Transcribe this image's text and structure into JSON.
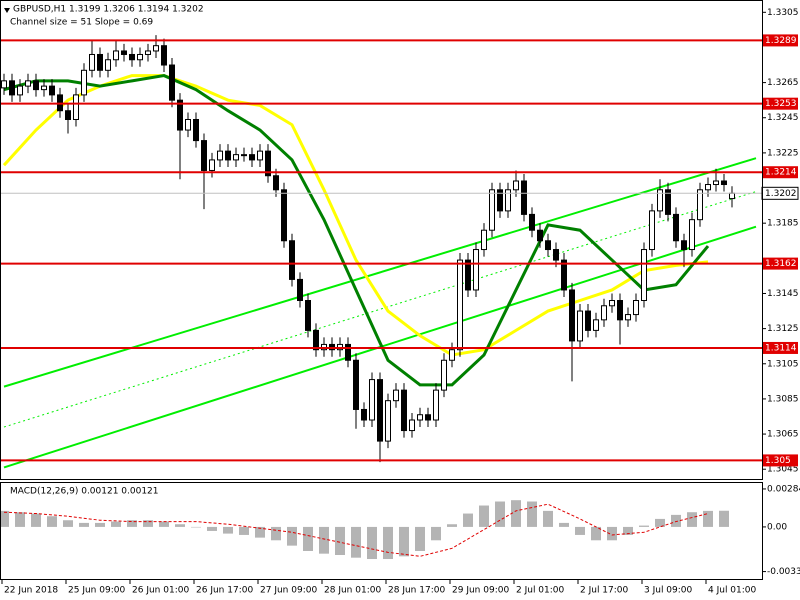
{
  "chart_data": {
    "type": "candlestick",
    "title": "GBPUSD,H1  1.3199 1.3206 1.3194 1.3202",
    "subtitle": "Channel size = 51 Slope = 0.69",
    "ylim": [
      1.304,
      1.3312
    ],
    "yticks": [
      1.3305,
      1.3265,
      1.3245,
      1.3225,
      1.3185,
      1.3145,
      1.3125,
      1.3105,
      1.3085,
      1.3065,
      1.3045
    ],
    "levels": [
      1.3289,
      1.3253,
      1.3214,
      1.3162,
      1.3114,
      1.305
    ],
    "level_color": "#e00000",
    "current_price": 1.3202,
    "x_labels": [
      "22 Jun 2018",
      "25 Jun 09:00",
      "26 Jun 01:00",
      "26 Jun 17:00",
      "27 Jun 09:00",
      "28 Jun 01:00",
      "28 Jun 17:00",
      "29 Jun 09:00",
      "2 Jul 01:00",
      "2 Jul 17:00",
      "3 Jul 09:00",
      "4 Jul 01:00"
    ],
    "candles": [
      [
        1.3262,
        1.327,
        1.3258,
        1.3266
      ],
      [
        1.3266,
        1.327,
        1.3254,
        1.3258
      ],
      [
        1.3258,
        1.3267,
        1.3254,
        1.3263
      ],
      [
        1.3263,
        1.327,
        1.3259,
        1.3266
      ],
      [
        1.3266,
        1.327,
        1.3257,
        1.3261
      ],
      [
        1.3261,
        1.3267,
        1.3257,
        1.3263
      ],
      [
        1.3263,
        1.3267,
        1.3254,
        1.3258
      ],
      [
        1.3258,
        1.3262,
        1.3245,
        1.3249
      ],
      [
        1.3249,
        1.3253,
        1.3236,
        1.3244
      ],
      [
        1.3244,
        1.3262,
        1.324,
        1.3258
      ],
      [
        1.3258,
        1.3276,
        1.3254,
        1.3272
      ],
      [
        1.3272,
        1.3289,
        1.3268,
        1.3281
      ],
      [
        1.3281,
        1.3285,
        1.3268,
        1.3272
      ],
      [
        1.3272,
        1.3282,
        1.3268,
        1.3278
      ],
      [
        1.3278,
        1.3289,
        1.3274,
        1.3283
      ],
      [
        1.3283,
        1.3287,
        1.3277,
        1.3281
      ],
      [
        1.3281,
        1.3285,
        1.3274,
        1.3278
      ],
      [
        1.3278,
        1.3285,
        1.3274,
        1.3281
      ],
      [
        1.3281,
        1.3287,
        1.3277,
        1.3283
      ],
      [
        1.3283,
        1.3292,
        1.3279,
        1.3286
      ],
      [
        1.3286,
        1.329,
        1.3271,
        1.3275
      ],
      [
        1.3275,
        1.3279,
        1.3251,
        1.3255
      ],
      [
        1.3255,
        1.3259,
        1.321,
        1.3238
      ],
      [
        1.3238,
        1.3248,
        1.3234,
        1.3244
      ],
      [
        1.3244,
        1.3248,
        1.3228,
        1.3232
      ],
      [
        1.3232,
        1.3236,
        1.3193,
        1.3215
      ],
      [
        1.3215,
        1.3225,
        1.3211,
        1.3221
      ],
      [
        1.3221,
        1.323,
        1.3217,
        1.3226
      ],
      [
        1.3226,
        1.323,
        1.3217,
        1.3221
      ],
      [
        1.3221,
        1.3228,
        1.3217,
        1.3224
      ],
      [
        1.3224,
        1.3228,
        1.322,
        1.3224
      ],
      [
        1.3224,
        1.3228,
        1.3217,
        1.3221
      ],
      [
        1.3221,
        1.323,
        1.3217,
        1.3226
      ],
      [
        1.3226,
        1.323,
        1.3208,
        1.3212
      ],
      [
        1.3212,
        1.3216,
        1.32,
        1.3204
      ],
      [
        1.3204,
        1.3208,
        1.3171,
        1.3175
      ],
      [
        1.3175,
        1.3179,
        1.3149,
        1.3153
      ],
      [
        1.3153,
        1.3157,
        1.3137,
        1.3141
      ],
      [
        1.3141,
        1.3145,
        1.312,
        1.3124
      ],
      [
        1.3124,
        1.3128,
        1.3109,
        1.3113
      ],
      [
        1.3113,
        1.312,
        1.3109,
        1.3116
      ],
      [
        1.3116,
        1.312,
        1.3109,
        1.3113
      ],
      [
        1.3113,
        1.312,
        1.3109,
        1.3116
      ],
      [
        1.3116,
        1.312,
        1.3103,
        1.3107
      ],
      [
        1.3107,
        1.3111,
        1.3068,
        1.3079
      ],
      [
        1.3079,
        1.3083,
        1.3069,
        1.3073
      ],
      [
        1.3073,
        1.31,
        1.3069,
        1.3096
      ],
      [
        1.3096,
        1.31,
        1.3049,
        1.3061
      ],
      [
        1.3061,
        1.3088,
        1.3057,
        1.3084
      ],
      [
        1.3084,
        1.3094,
        1.308,
        1.309
      ],
      [
        1.309,
        1.3094,
        1.3063,
        1.3067
      ],
      [
        1.3067,
        1.3077,
        1.3063,
        1.3073
      ],
      [
        1.3073,
        1.308,
        1.3069,
        1.3076
      ],
      [
        1.3076,
        1.308,
        1.3069,
        1.3073
      ],
      [
        1.3073,
        1.3094,
        1.3069,
        1.309
      ],
      [
        1.309,
        1.3111,
        1.3086,
        1.3107
      ],
      [
        1.3107,
        1.3117,
        1.3103,
        1.3113
      ],
      [
        1.3113,
        1.3168,
        1.3109,
        1.3164
      ],
      [
        1.3164,
        1.3168,
        1.3143,
        1.3147
      ],
      [
        1.3147,
        1.3174,
        1.3143,
        1.317
      ],
      [
        1.317,
        1.3185,
        1.3166,
        1.3181
      ],
      [
        1.3181,
        1.3208,
        1.3177,
        1.3204
      ],
      [
        1.3204,
        1.3208,
        1.3188,
        1.3192
      ],
      [
        1.3192,
        1.3208,
        1.3188,
        1.3204
      ],
      [
        1.3204,
        1.3215,
        1.32,
        1.3209
      ],
      [
        1.3209,
        1.3213,
        1.3186,
        1.319
      ],
      [
        1.319,
        1.3194,
        1.3177,
        1.3181
      ],
      [
        1.3181,
        1.3185,
        1.3171,
        1.3175
      ],
      [
        1.3175,
        1.3179,
        1.3166,
        1.317
      ],
      [
        1.317,
        1.3174,
        1.316,
        1.3164
      ],
      [
        1.3164,
        1.3168,
        1.3143,
        1.3147
      ],
      [
        1.3147,
        1.3151,
        1.3095,
        1.3118
      ],
      [
        1.3118,
        1.3139,
        1.3114,
        1.3135
      ],
      [
        1.3135,
        1.3139,
        1.312,
        1.3124
      ],
      [
        1.3124,
        1.3134,
        1.312,
        1.313
      ],
      [
        1.313,
        1.3142,
        1.3126,
        1.3138
      ],
      [
        1.3138,
        1.3145,
        1.3134,
        1.3141
      ],
      [
        1.3141,
        1.3145,
        1.3116,
        1.313
      ],
      [
        1.313,
        1.3137,
        1.3126,
        1.3133
      ],
      [
        1.3133,
        1.3145,
        1.3129,
        1.3141
      ],
      [
        1.3141,
        1.3174,
        1.3137,
        1.317
      ],
      [
        1.317,
        1.3196,
        1.3166,
        1.3192
      ],
      [
        1.3192,
        1.321,
        1.3188,
        1.3204
      ],
      [
        1.3204,
        1.3208,
        1.3186,
        1.319
      ],
      [
        1.319,
        1.3194,
        1.3171,
        1.3175
      ],
      [
        1.3175,
        1.3179,
        1.316,
        1.317
      ],
      [
        1.317,
        1.3191,
        1.3166,
        1.3187
      ],
      [
        1.3187,
        1.3208,
        1.3183,
        1.3204
      ],
      [
        1.3204,
        1.3211,
        1.32,
        1.3207
      ],
      [
        1.3207,
        1.3216,
        1.3203,
        1.3209
      ],
      [
        1.3209,
        1.3213,
        1.3203,
        1.3207
      ],
      [
        1.3199,
        1.3206,
        1.3194,
        1.3202
      ]
    ],
    "overlays": [
      {
        "color": "#ffff00",
        "values": [
          1.3218,
          1.3238,
          1.3255,
          1.3263,
          1.3269,
          1.3269,
          1.3263,
          1.3255,
          1.3252,
          1.3241,
          1.3204,
          1.3164,
          1.3135,
          1.3121,
          1.311,
          1.3113,
          1.3124,
          1.3135,
          1.3141,
          1.3147,
          1.3158,
          1.3161,
          1.3163
        ]
      },
      {
        "color": "#008000",
        "values": [
          1.3261,
          1.3266,
          1.3266,
          1.3263,
          1.3266,
          1.3269,
          1.3261,
          1.3249,
          1.3238,
          1.3221,
          1.3187,
          1.3147,
          1.3107,
          1.3093,
          1.3093,
          1.311,
          1.3147,
          1.3184,
          1.3181,
          1.3164,
          1.3147,
          1.315,
          1.3172
        ]
      }
    ],
    "trendlines": [
      {
        "color": "#00ee00",
        "style": "solid",
        "start": [
          0,
          1.3092
        ],
        "end": [
          94,
          1.3222
        ]
      },
      {
        "color": "#00ee00",
        "style": "dotted",
        "start": [
          0,
          1.3069
        ],
        "end": [
          94,
          1.3203
        ]
      },
      {
        "color": "#00ee00",
        "style": "solid",
        "start": [
          0,
          1.3046
        ],
        "end": [
          94,
          1.3183
        ]
      }
    ],
    "macd": {
      "label": "MACD(12,26,9) 0.00121 0.00121",
      "ylim": [
        -0.00382,
        0.00321
      ],
      "yticks": [
        0.00284,
        {
          "value": 0,
          "label": "0.00"
        },
        -0.00334
      ],
      "color": "#b4b4b4",
      "signal_color": "#e00000",
      "values": [
        0.0012,
        0.0011,
        0.001,
        0.0008,
        0.0005,
        0.0003,
        0.0003,
        0.0004,
        0.0005,
        0.0005,
        0.0004,
        0.0002,
        0.0,
        -0.0003,
        -0.0005,
        -0.0006,
        -0.0008,
        -0.001,
        -0.0014,
        -0.0018,
        -0.002,
        -0.0021,
        -0.0023,
        -0.0024,
        -0.0024,
        -0.0022,
        -0.0018,
        -0.001,
        0.0002,
        0.001,
        0.0016,
        0.0019,
        0.002,
        0.0019,
        0.0012,
        0.0003,
        -0.0006,
        -0.001,
        -0.001,
        -0.0006,
        0.0001,
        0.0006,
        0.0009,
        0.0011,
        0.0012,
        0.00121
      ],
      "signal": [
        0.0011,
        0.001,
        0.0008,
        0.0005,
        0.0004,
        0.0004,
        0.0004,
        0.0002,
        -0.0001,
        -0.0004,
        -0.0009,
        -0.0014,
        -0.0019,
        -0.0022,
        -0.0016,
        -0.0002,
        0.0012,
        0.0017,
        0.0006,
        -0.0006,
        -0.0004,
        0.0004,
        0.001
      ]
    }
  }
}
